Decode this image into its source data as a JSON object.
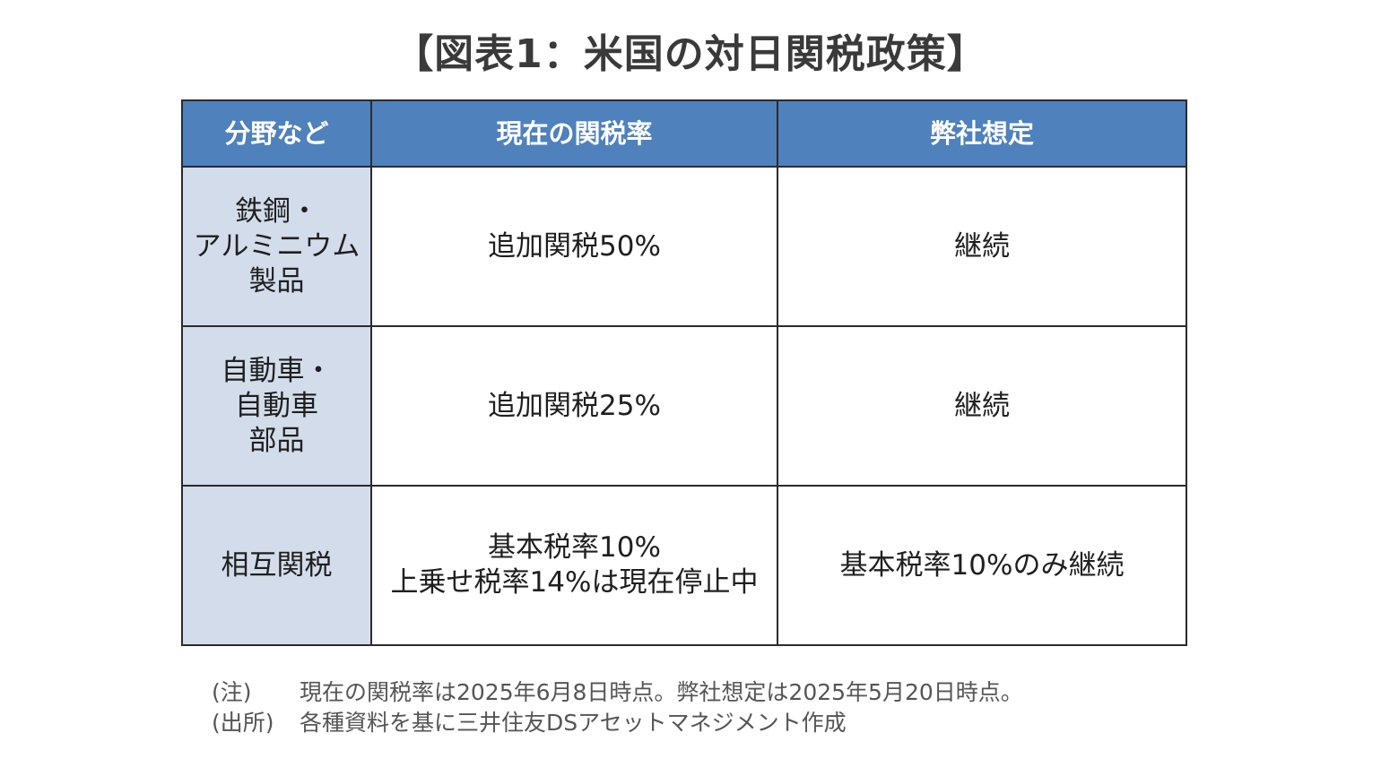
{
  "title": "【図表1：米国の対日関税政策】",
  "table": {
    "headers": [
      "分野など",
      "現在の関税率",
      "弊社想定"
    ],
    "rows": [
      {
        "category": [
          "鉄鋼・",
          "アルミニウム",
          "製品"
        ],
        "current": [
          "追加関税50%"
        ],
        "assumption": [
          "継続"
        ]
      },
      {
        "category": [
          "自動車・",
          "自動車",
          "部品"
        ],
        "current": [
          "追加関税25%"
        ],
        "assumption": [
          "継続"
        ]
      },
      {
        "category": [
          "相互関税"
        ],
        "current": [
          "基本税率10%",
          "上乗せ税率14%は現在停止中"
        ],
        "assumption": [
          "基本税率10%のみ継続"
        ]
      }
    ]
  },
  "notes": [
    {
      "label": "(注)",
      "text": "現在の関税率は2025年6月8日時点。弊社想定は2025年5月20日時点。"
    },
    {
      "label": "(出所)",
      "text": "各種資料を基に三井住友DSアセットマネジメント作成"
    }
  ],
  "colors": {
    "header_bg": "#4f81bd",
    "category_bg": "#d3dcea",
    "border": "#2b2b2b"
  }
}
